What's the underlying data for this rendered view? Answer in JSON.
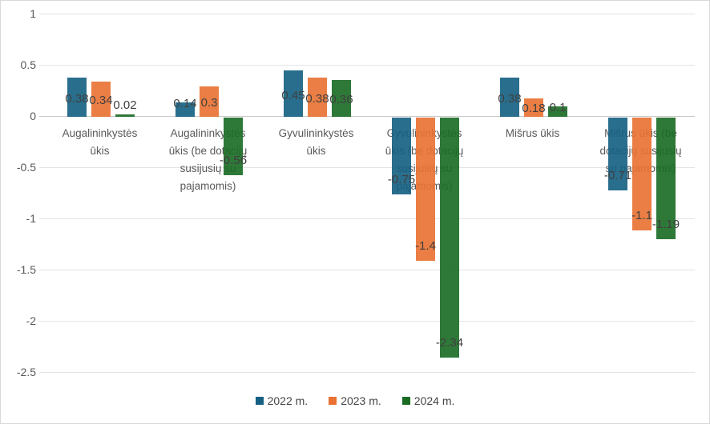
{
  "chart_data": {
    "type": "bar",
    "title": "",
    "categories": [
      "Augalininkystės ūkis",
      "Augalininkystės ūkis (be dotacijų susijusių su pajamomis)",
      "Gyvulininkystės ūkis",
      "Gyvulininkystės ūkis (be dotacijų susijusių su pajamomis)",
      "Mišrus ūkis",
      "Mišrus ūkis (be dotacijų susijusių su pajamomis)"
    ],
    "series": [
      {
        "name": "2022 m.",
        "color": "#156082",
        "values": [
          0.38,
          0.14,
          0.45,
          -0.75,
          0.38,
          -0.71
        ]
      },
      {
        "name": "2023 m.",
        "color": "#E97132",
        "values": [
          0.34,
          0.3,
          0.38,
          -1.4,
          0.18,
          -1.1
        ]
      },
      {
        "name": "2024 m.",
        "color": "#196B24",
        "values": [
          0.02,
          -0.56,
          0.36,
          -2.34,
          0.1,
          -1.19
        ]
      }
    ],
    "y_axis": {
      "min": -2.5,
      "max": 1,
      "step": 0.5,
      "ticks": [
        "1",
        "0.5",
        "0",
        "-0.5",
        "-1",
        "-1.5",
        "-2",
        "-2.5"
      ]
    },
    "grid": true,
    "legend_position": "bottom",
    "data_labels": true,
    "colors": {
      "gridline": "#E4E4E4",
      "zero_axis": "#C9C9C9",
      "axis_text": "#595959",
      "category_text": "#595959",
      "data_label_text": "#404040",
      "legend_text": "#444444",
      "background": "#FFFFFF",
      "border": "#D9D9D9"
    }
  }
}
